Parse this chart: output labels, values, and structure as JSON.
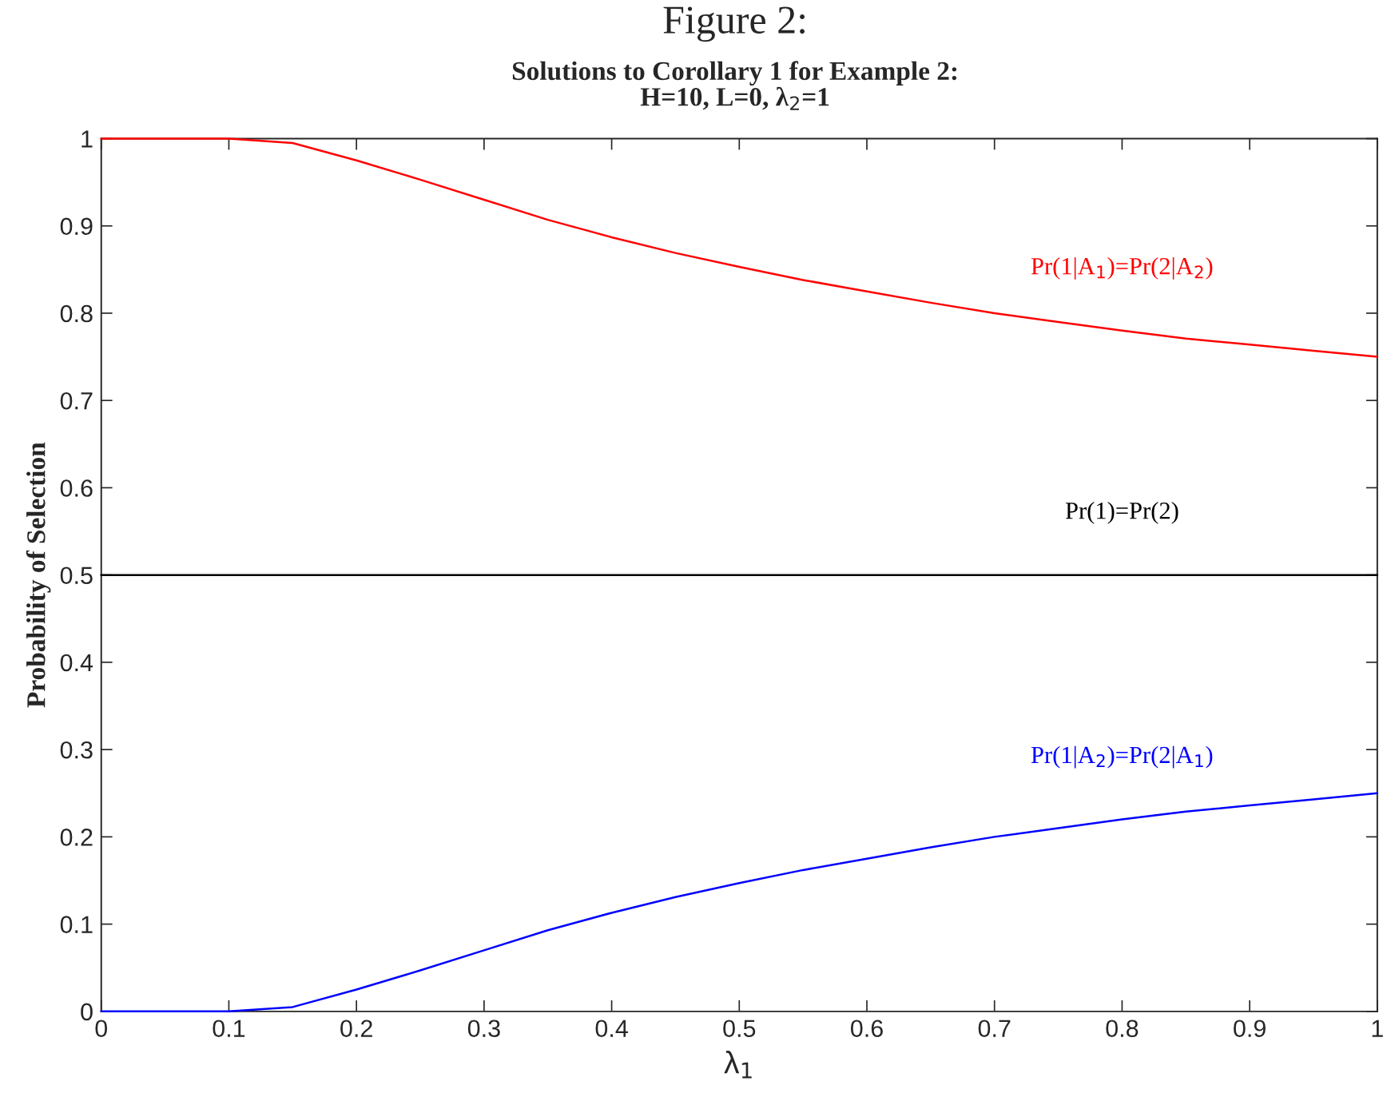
{
  "chart_data": {
    "type": "line",
    "title": "Figure 2:",
    "subtitle": "Solutions to Corollary 1 for Example 2:\nH=10, L=0, λ$_{2}$=1",
    "xlabel": "λ$_{1}$",
    "ylabel": "Probability of Selection",
    "x": [
      0,
      0.05,
      0.1,
      0.15,
      0.2,
      0.25,
      0.3,
      0.35,
      0.4,
      0.45,
      0.5,
      0.55,
      0.6,
      0.65,
      0.7,
      0.75,
      0.8,
      0.85,
      0.9,
      0.95,
      1
    ],
    "series": [
      {
        "name": "Pr(1|A$_{1}$)=Pr(2|A$_{2}$)",
        "color": "#ff0000",
        "values": [
          1,
          1,
          1,
          0.995,
          0.975,
          0.953,
          0.93,
          0.907,
          0.887,
          0.869,
          0.853,
          0.838,
          0.825,
          0.812,
          0.8,
          0.79,
          0.78,
          0.771,
          0.764,
          0.757,
          0.75
        ]
      },
      {
        "name": "Pr(1)=Pr(2)",
        "color": "#000000",
        "values": [
          0.5,
          0.5,
          0.5,
          0.5,
          0.5,
          0.5,
          0.5,
          0.5,
          0.5,
          0.5,
          0.5,
          0.5,
          0.5,
          0.5,
          0.5,
          0.5,
          0.5,
          0.5,
          0.5,
          0.5,
          0.5
        ]
      },
      {
        "name": "Pr(1|A$_{2}$)=Pr(2|A$_{1}$)",
        "color": "#0000ff",
        "values": [
          0,
          0,
          0,
          0.005,
          0.025,
          0.047,
          0.07,
          0.093,
          0.113,
          0.131,
          0.147,
          0.162,
          0.175,
          0.188,
          0.2,
          0.21,
          0.22,
          0.229,
          0.236,
          0.243,
          0.25
        ]
      }
    ],
    "xlim": [
      0,
      1
    ],
    "ylim": [
      0,
      1
    ],
    "xticks": [
      0,
      0.1,
      0.2,
      0.3,
      0.4,
      0.5,
      0.6,
      0.7,
      0.8,
      0.9,
      1
    ],
    "yticks": [
      0,
      0.1,
      0.2,
      0.3,
      0.4,
      0.5,
      0.6,
      0.7,
      0.8,
      0.9,
      1
    ],
    "grid": false,
    "legend": false,
    "marker": "none",
    "line_style": "solid"
  }
}
